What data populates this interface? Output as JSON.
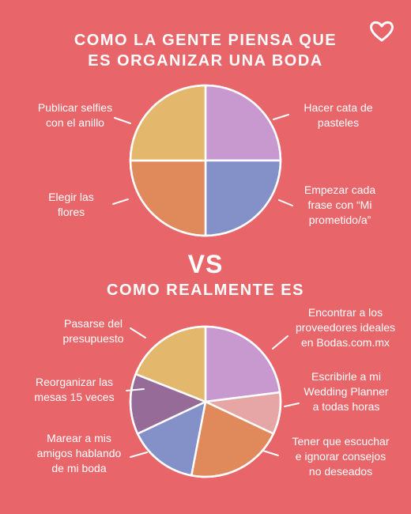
{
  "header": {
    "title_1": "COMO LA GENTE PIENSA QUE\nES ORGANIZAR UNA BODA",
    "vs": "VS",
    "title_2": "COMO REALMENTE ES",
    "heart_icon": "heart-outline-icon"
  },
  "colors": {
    "background": "#e8666a",
    "lilac": "#c899cf",
    "periwinkle": "#8490c8",
    "orange": "#e08a5c",
    "mustard": "#e3b86d",
    "mauve": "#976b98",
    "pink": "#e6a6a6",
    "stroke": "#ffffff"
  },
  "chart_data": [
    {
      "type": "pie",
      "title": "COMO LA GENTE PIENSA QUE ES ORGANIZAR UNA BODA",
      "slices": [
        {
          "label": "Hacer cata de pasteles",
          "value": 25,
          "color": "#c899cf"
        },
        {
          "label": "Empezar cada frase con “Mi prometido/a”",
          "value": 25,
          "color": "#8490c8"
        },
        {
          "label": "Elegir las flores",
          "value": 25,
          "color": "#e08a5c"
        },
        {
          "label": "Publicar selfies con el anillo",
          "value": 25,
          "color": "#e3b86d"
        }
      ]
    },
    {
      "type": "pie",
      "title": "COMO REALMENTE ES",
      "slices": [
        {
          "label": "Encontrar a los proveedores ideales en Bodas.com.mx",
          "value": 23,
          "color": "#c899cf"
        },
        {
          "label": "Escribirle a mi Wedding Planner a todas horas",
          "value": 9,
          "color": "#e6a6a6"
        },
        {
          "label": "Tener que escuchar e ignorar consejos no deseados",
          "value": 21,
          "color": "#e08a5c"
        },
        {
          "label": "Marear a mis amigos hablando de mi boda",
          "value": 15,
          "color": "#8490c8"
        },
        {
          "label": "Reorganizar las mesas 15 veces",
          "value": 13,
          "color": "#976b98"
        },
        {
          "label": "Pasarse del presupuesto",
          "value": 19,
          "color": "#e3b86d"
        }
      ]
    }
  ],
  "labels_1": [
    "Hacer cata de\npasteles",
    "Empezar cada\nfrase con “Mi\nprometido/a”",
    "Elegir las\nflores",
    "Publicar selfies\ncon el anillo"
  ],
  "labels_2": [
    "Encontrar a los\nproveedores ideales\nen Bodas.com.mx",
    "Escribirle a mi\nWedding Planner\na todas horas",
    "Tener que escuchar\ne ignorar consejos\nno deseados",
    "Marear a mis\namigos hablando\nde mi boda",
    "Reorganizar las\nmesas 15 veces",
    "Pasarse del\npresupuesto"
  ]
}
